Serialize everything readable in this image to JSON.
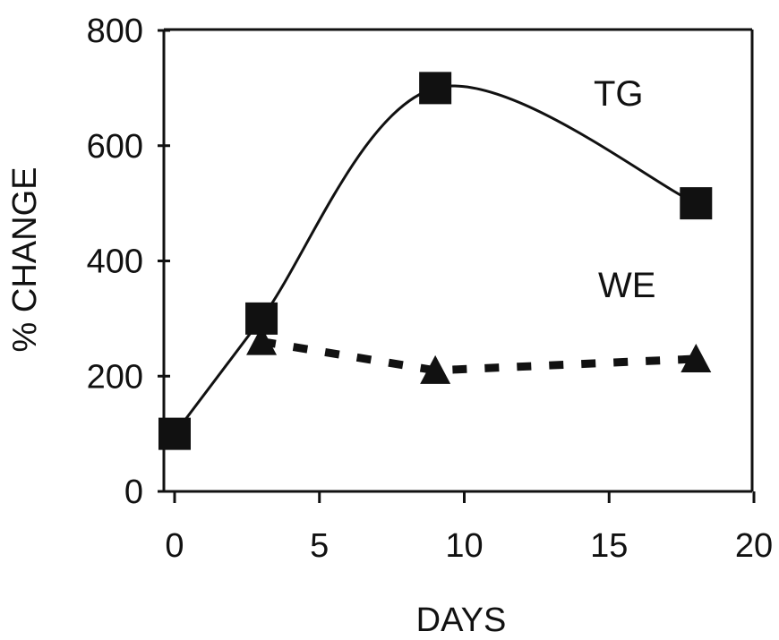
{
  "chart_data": {
    "type": "line",
    "xlabel": "DAYS",
    "ylabel": "% CHANGE",
    "xlim": [
      0,
      20
    ],
    "ylim": [
      0,
      800
    ],
    "x_ticks": [
      "0",
      "5",
      "10",
      "15",
      "20"
    ],
    "y_ticks": [
      "0",
      "200",
      "400",
      "600",
      "800"
    ],
    "grid": false,
    "series": [
      {
        "name": "TG",
        "marker": "square",
        "line_style": "solid-smooth",
        "color": "#111111",
        "points": [
          {
            "x": 0,
            "y": 100
          },
          {
            "x": 3,
            "y": 300
          },
          {
            "x": 9,
            "y": 700
          },
          {
            "x": 18,
            "y": 500
          }
        ]
      },
      {
        "name": "WE",
        "marker": "triangle",
        "line_style": "dashed",
        "color": "#111111",
        "points": [
          {
            "x": 3,
            "y": 260
          },
          {
            "x": 9,
            "y": 210
          },
          {
            "x": 18,
            "y": 230
          }
        ]
      }
    ]
  }
}
